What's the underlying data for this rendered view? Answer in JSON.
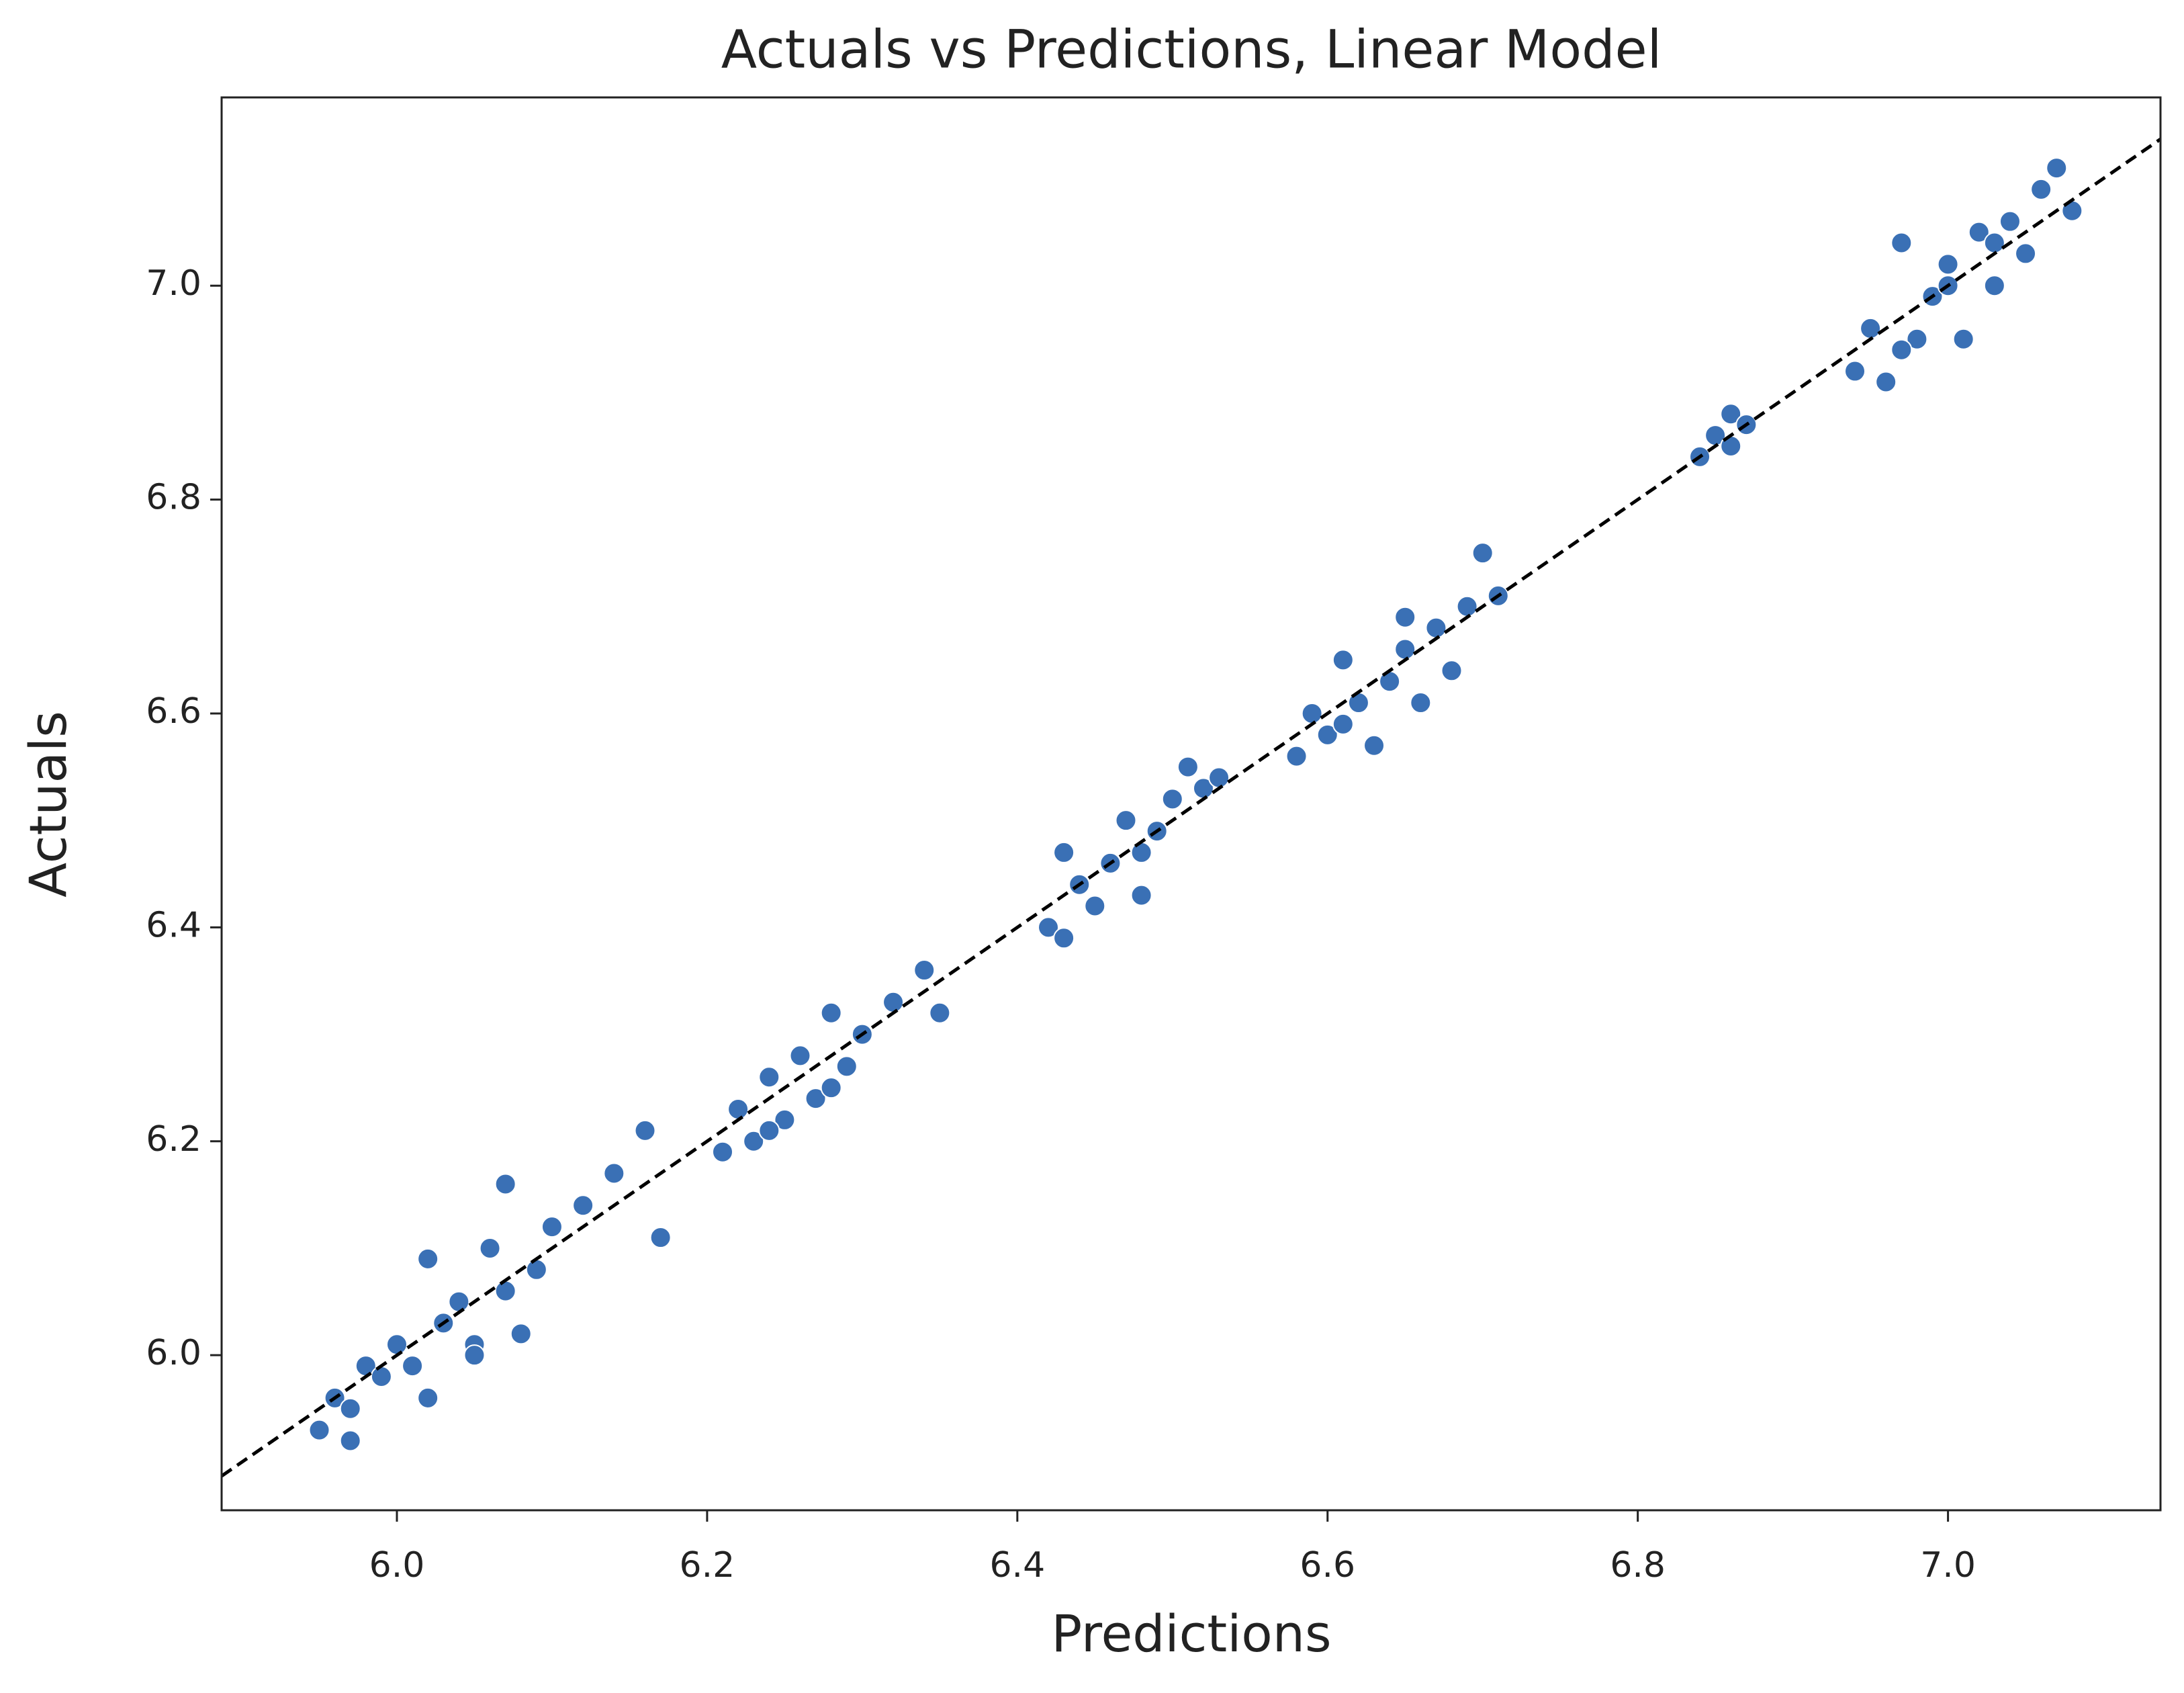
{
  "chart_data": {
    "type": "scatter",
    "title": "Actuals vs Predictions, Linear Model",
    "x_label": "Predictions",
    "y_label": "Actuals",
    "xlim": [
      5.887,
      7.137
    ],
    "ylim": [
      5.855,
      7.176
    ],
    "xticks": [
      {
        "value": 6.0,
        "label": "6.0"
      },
      6.2,
      6.4,
      6.6,
      6.8,
      {
        "value": 7.0,
        "label": "7.0"
      }
    ],
    "yticks": [
      {
        "value": 6.0,
        "label": "6.0"
      },
      6.2,
      6.4,
      6.6,
      6.8,
      {
        "value": 7.0,
        "label": "7.0"
      }
    ],
    "color": "#3a70b5",
    "series": [
      {
        "x": [
          5.95,
          5.96,
          5.97,
          5.98,
          5.97,
          5.99,
          6.0,
          6.01,
          6.02,
          6.02,
          6.03,
          6.04,
          6.05,
          6.06,
          6.07,
          6.08,
          6.09,
          6.1,
          6.12,
          6.14,
          6.16,
          6.17,
          6.07,
          6.05,
          6.21,
          6.22,
          6.23,
          6.24,
          6.25,
          6.26,
          6.27,
          6.28,
          6.29,
          6.3,
          6.32,
          6.34,
          6.35,
          6.24,
          6.28,
          6.42,
          6.43,
          6.44,
          6.45,
          6.46,
          6.47,
          6.48,
          6.49,
          6.5,
          6.51,
          6.52,
          6.53,
          6.43,
          6.48,
          6.58,
          6.59,
          6.6,
          6.61,
          6.62,
          6.63,
          6.64,
          6.65,
          6.66,
          6.67,
          6.68,
          6.69,
          6.7,
          6.71,
          6.61,
          6.65,
          6.84,
          6.85,
          6.86,
          6.86,
          6.87,
          6.94,
          6.95,
          6.96,
          6.97,
          6.98,
          6.99,
          7.0,
          7.01,
          7.02,
          7.03,
          7.04,
          7.05,
          7.06,
          7.07,
          7.08,
          6.97,
          7.0,
          7.03
        ],
        "values": [
          5.93,
          5.96,
          5.92,
          5.99,
          5.95,
          5.98,
          6.01,
          5.99,
          6.09,
          5.96,
          6.03,
          6.05,
          6.01,
          6.1,
          6.16,
          6.02,
          6.08,
          6.12,
          6.14,
          6.17,
          6.21,
          6.11,
          6.06,
          6.0,
          6.19,
          6.23,
          6.2,
          6.26,
          6.22,
          6.28,
          6.24,
          6.32,
          6.27,
          6.3,
          6.33,
          6.36,
          6.32,
          6.21,
          6.25,
          6.4,
          6.47,
          6.44,
          6.42,
          6.46,
          6.5,
          6.43,
          6.49,
          6.52,
          6.55,
          6.53,
          6.54,
          6.39,
          6.47,
          6.56,
          6.6,
          6.58,
          6.65,
          6.61,
          6.57,
          6.63,
          6.66,
          6.61,
          6.68,
          6.64,
          6.7,
          6.75,
          6.71,
          6.59,
          6.69,
          6.84,
          6.86,
          6.85,
          6.88,
          6.87,
          6.92,
          6.96,
          6.91,
          7.04,
          6.95,
          6.99,
          7.02,
          6.95,
          7.05,
          7.0,
          7.06,
          7.03,
          7.09,
          7.11,
          7.07,
          6.94,
          7.0,
          7.04
        ]
      }
    ],
    "reference_line": {
      "x": [
        5.887,
        7.137
      ],
      "values": [
        5.887,
        7.137
      ],
      "color": "#000000",
      "dashed": true
    }
  }
}
